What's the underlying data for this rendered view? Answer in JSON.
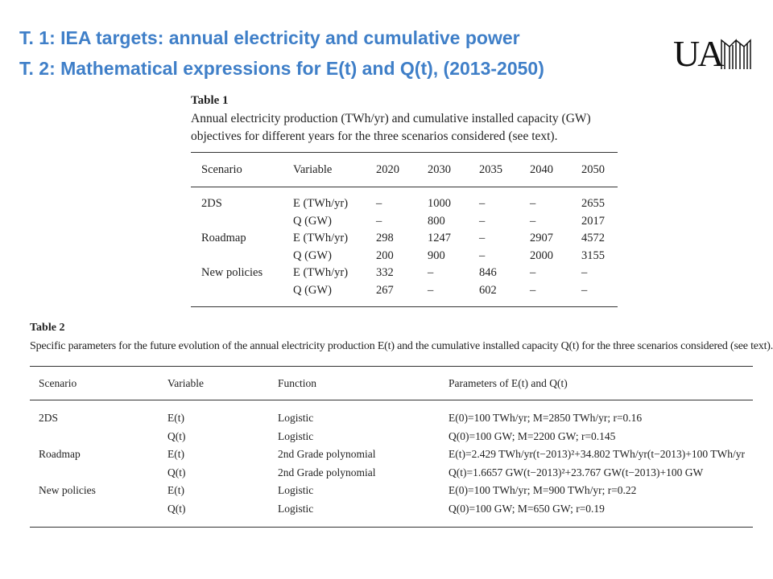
{
  "header": {
    "title_lines": [
      "T. 1: IEA targets: annual electricity and cumulative power",
      "T. 2: Mathematical expressions for E(t) and Q(t), (2013-2050)"
    ],
    "logo": "UA"
  },
  "table1": {
    "label": "Table 1",
    "caption": "Annual electricity production (TWh/yr) and cumulative installed capacity (GW) objectives for different years for the three scenarios considered (see text).",
    "headers": [
      "Scenario",
      "Variable",
      "2020",
      "2030",
      "2035",
      "2040",
      "2050"
    ],
    "groups": [
      {
        "scenario": "2DS",
        "rows": [
          [
            "E (TWh/yr)",
            "–",
            "1000",
            "–",
            "–",
            "2655"
          ],
          [
            "Q (GW)",
            "–",
            "800",
            "–",
            "–",
            "2017"
          ]
        ]
      },
      {
        "scenario": "Roadmap",
        "rows": [
          [
            "E (TWh/yr)",
            "298",
            "1247",
            "–",
            "2907",
            "4572"
          ],
          [
            "Q (GW)",
            "200",
            "900",
            "–",
            "2000",
            "3155"
          ]
        ]
      },
      {
        "scenario": "New policies",
        "rows": [
          [
            "E (TWh/yr)",
            "332",
            "–",
            "846",
            "–",
            "–"
          ],
          [
            "Q (GW)",
            "267",
            "–",
            "602",
            "–",
            "–"
          ]
        ]
      }
    ]
  },
  "table2": {
    "label": "Table 2",
    "caption": "Specific parameters for the future evolution of the annual electricity production E(t) and the cumulative installed capacity Q(t) for the three scenarios considered (see text).",
    "headers": [
      "Scenario",
      "Variable",
      "Function",
      "Parameters of E(t) and Q(t)"
    ],
    "groups": [
      {
        "scenario": "2DS",
        "rows": [
          [
            "E(t)",
            "Logistic",
            "E(0)=100 TWh/yr; M=2850 TWh/yr; r=0.16"
          ],
          [
            "Q(t)",
            "Logistic",
            "Q(0)=100 GW; M=2200 GW; r=0.145"
          ]
        ]
      },
      {
        "scenario": "Roadmap",
        "rows": [
          [
            "E(t)",
            "2nd Grade polynomial",
            "E(t)=2.429 TWh/yr(t−2013)²+34.802 TWh/yr(t−2013)+100 TWh/yr"
          ],
          [
            "Q(t)",
            "2nd Grade polynomial",
            "Q(t)=1.6657 GW(t−2013)²+23.767 GW(t−2013)+100 GW"
          ]
        ]
      },
      {
        "scenario": "New policies",
        "rows": [
          [
            "E(t)",
            "Logistic",
            "E(0)=100 TWh/yr; M=900 TWh/yr; r=0.22"
          ],
          [
            "Q(t)",
            "Logistic",
            "Q(0)=100 GW; M=650 GW; r=0.19"
          ]
        ]
      }
    ]
  }
}
